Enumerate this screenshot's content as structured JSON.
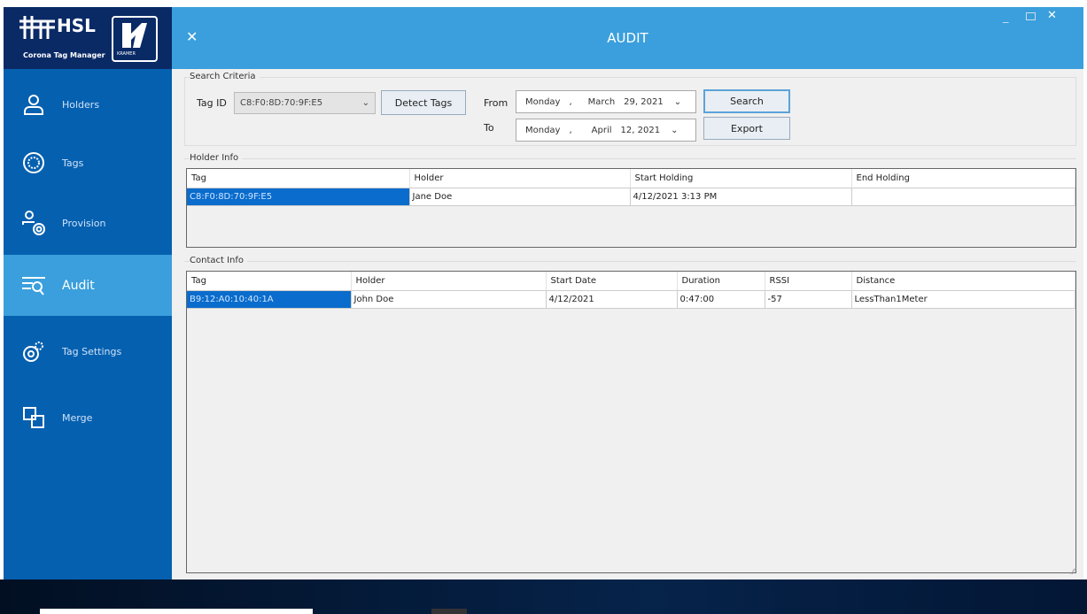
{
  "app": {
    "logo_text": "HSL",
    "logo_subtitle": "Corona Tag Manager",
    "brand": "KRAMER",
    "title": "AUDIT",
    "close_icon": "close-icon",
    "window_controls": [
      "minimize",
      "maximize",
      "close"
    ]
  },
  "colors": {
    "header": "#3a9fdc",
    "sidebar": "#0660b0",
    "logo_bg": "#0a2a66",
    "selected": "#3a9fdc"
  },
  "sidebar": {
    "items": [
      {
        "label": "Holders",
        "icon": "person-icon"
      },
      {
        "label": "Tags",
        "icon": "tag-gear-icon"
      },
      {
        "label": "Provision",
        "icon": "provision-icon"
      },
      {
        "label": "Audit",
        "icon": "audit-search-icon",
        "selected": true
      },
      {
        "label": "Tag Settings",
        "icon": "settings-gear-icon"
      },
      {
        "label": "Merge",
        "icon": "merge-icon"
      }
    ]
  },
  "search": {
    "group_label": "Search Criteria",
    "tag_id_label": "Tag ID",
    "tag_id_value": "C8:F0:8D:70:9F:E5",
    "detect_label": "Detect Tags",
    "from_label": "From",
    "to_label": "To",
    "from": {
      "weekday": "Monday",
      "month": "March",
      "day_year": "29, 2021"
    },
    "to": {
      "weekday": "Monday",
      "month": "April",
      "day_year": "12, 2021"
    },
    "search_label": "Search",
    "export_label": "Export"
  },
  "holder_info": {
    "group_label": "Holder Info",
    "columns": [
      "Tag",
      "Holder",
      "Start Holding",
      "End Holding"
    ],
    "rows": [
      [
        "C8:F0:8D:70:9F:E5",
        "Jane Doe",
        "4/12/2021 3:13 PM",
        ""
      ]
    ]
  },
  "contact_info": {
    "group_label": "Contact Info",
    "columns": [
      "Tag",
      "Holder",
      "Start Date",
      "Duration",
      "RSSI",
      "Distance"
    ],
    "rows": [
      [
        "B9:12:A0:10:40:1A",
        "John Doe",
        "4/12/2021",
        "0:47:00",
        "-57",
        "LessThan1Meter"
      ]
    ]
  }
}
